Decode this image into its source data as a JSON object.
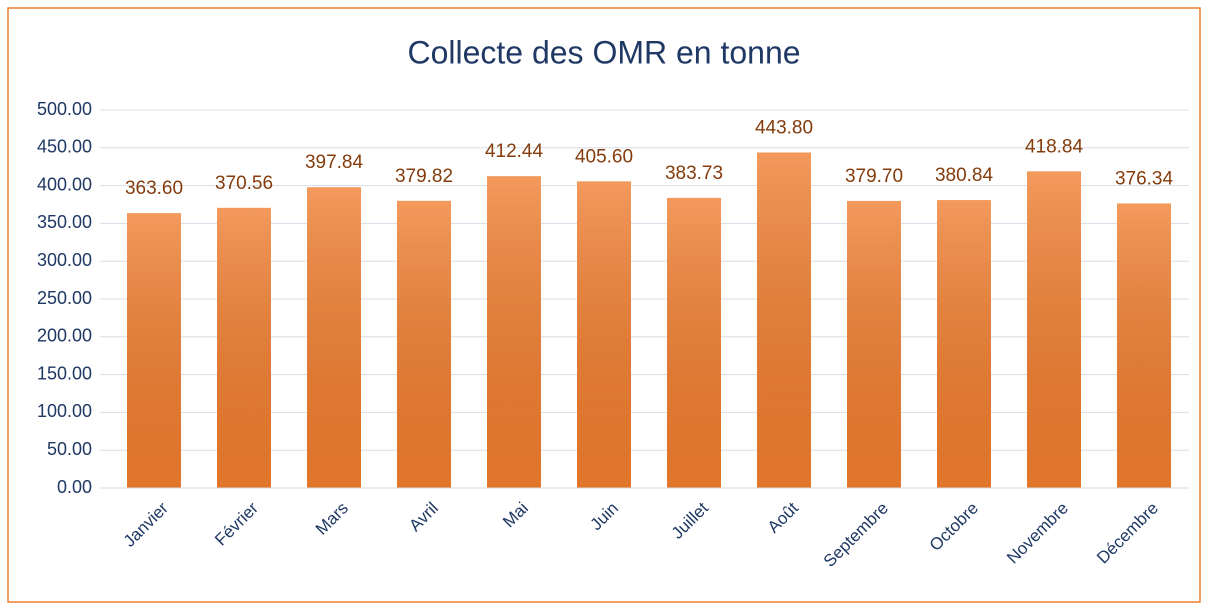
{
  "chart_data": {
    "type": "bar",
    "title": "Collecte des OMR en tonne",
    "categories": [
      "Janvier",
      "Février",
      "Mars",
      "Avril",
      "Mai",
      "Juin",
      "Juillet",
      "Août",
      "Septembre",
      "Octobre",
      "Novembre",
      "Décembre"
    ],
    "values": [
      363.6,
      370.56,
      397.84,
      379.82,
      412.44,
      405.6,
      383.73,
      443.8,
      379.7,
      380.84,
      418.84,
      376.34
    ],
    "value_labels": [
      "363.60",
      "370.56",
      "397.84",
      "379.82",
      "412.44",
      "405.60",
      "383.73",
      "443.80",
      "379.70",
      "380.84",
      "418.84",
      "376.34"
    ],
    "color": "#ef7d2e",
    "ylim": [
      0,
      500
    ],
    "yticks": [
      {
        "value": 0,
        "label": "0.00"
      },
      {
        "value": 50,
        "label": "50.00"
      },
      {
        "value": 100,
        "label": "100.00"
      },
      {
        "value": 150,
        "label": "150.00"
      },
      {
        "value": 200,
        "label": "200.00"
      },
      {
        "value": 250,
        "label": "250.00"
      },
      {
        "value": 300,
        "label": "300.00"
      },
      {
        "value": 350,
        "label": "350.00"
      },
      {
        "value": 400,
        "label": "400.00"
      },
      {
        "value": 450,
        "label": "450.00"
      },
      {
        "value": 500,
        "label": "500.00"
      }
    ],
    "grid": true
  }
}
